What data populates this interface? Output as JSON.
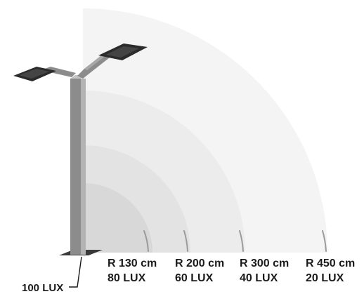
{
  "diagram": {
    "center_label": "100 LUX",
    "zones": [
      {
        "radius_label": "R 130 cm",
        "lux_label": "80 LUX",
        "radius_cm": 130,
        "lux": 80,
        "fill": "#d8d8d8"
      },
      {
        "radius_label": "R 200 cm",
        "lux_label": "60 LUX",
        "radius_cm": 200,
        "lux": 60,
        "fill": "#e3e3e3"
      },
      {
        "radius_label": "R 300 cm",
        "lux_label": "40 LUX",
        "radius_cm": 300,
        "lux": 40,
        "fill": "#ececec"
      },
      {
        "radius_label": "R 450 cm",
        "lux_label": "20 LUX",
        "radius_cm": 450,
        "lux": 20,
        "fill": "#f4f4f4"
      }
    ],
    "colors": {
      "pole_front": "#8c8c8c",
      "pole_side": "#b3b3b3",
      "panel": "#2b2b2b",
      "tick": "#9a9a9a",
      "text": "#1a1a1a"
    }
  }
}
